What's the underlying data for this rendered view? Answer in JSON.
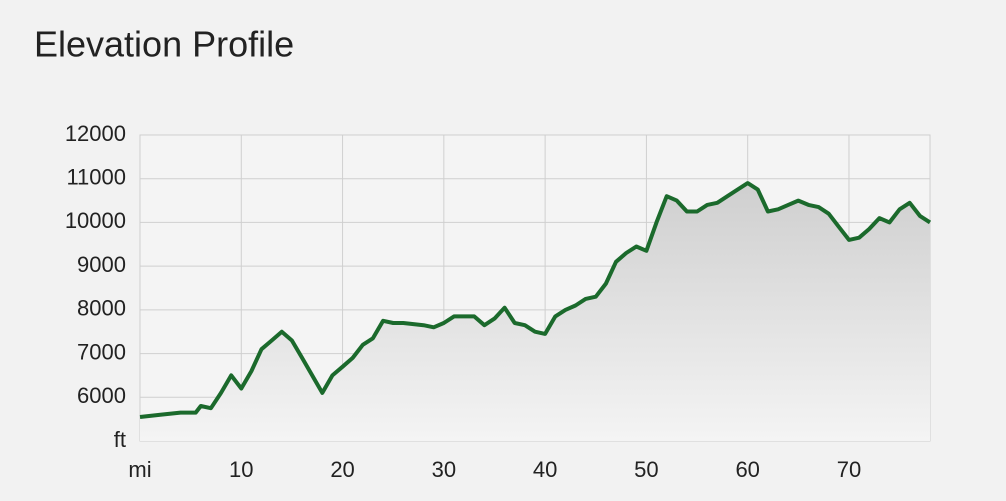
{
  "chart_data": {
    "type": "line",
    "title": "Elevation Profile",
    "x": [
      0,
      2,
      4,
      5.5,
      6,
      7,
      8,
      9,
      10,
      11,
      12,
      13,
      14,
      15,
      16,
      17,
      18,
      19,
      20,
      21,
      22,
      23,
      24,
      25,
      26,
      28,
      29,
      30,
      31,
      33,
      34,
      35,
      36,
      37,
      38,
      39,
      40,
      41,
      42,
      43,
      44,
      45,
      46,
      47,
      48,
      49,
      50,
      51,
      52,
      53,
      54,
      55,
      56,
      57,
      58,
      59,
      60,
      61,
      62,
      63,
      64,
      65,
      66,
      67,
      68,
      69,
      70,
      71,
      72,
      73,
      74,
      75,
      76,
      77,
      78
    ],
    "series": [
      {
        "name": "Elevation",
        "color": "#1b6a2c",
        "values": [
          5550,
          5600,
          5650,
          5650,
          5800,
          5750,
          6100,
          6500,
          6200,
          6600,
          7100,
          7300,
          7500,
          7300,
          6900,
          6500,
          6100,
          6500,
          6700,
          6900,
          7200,
          7350,
          7750,
          7700,
          7700,
          7650,
          7600,
          7700,
          7850,
          7850,
          7650,
          7800,
          8050,
          7700,
          7650,
          7500,
          7450,
          7850,
          8000,
          8100,
          8250,
          8300,
          8600,
          9100,
          9300,
          9450,
          9350,
          10000,
          10600,
          10500,
          10250,
          10250,
          10400,
          10450,
          10600,
          10750,
          10900,
          10750,
          10250,
          10300,
          10400,
          10500,
          10400,
          10350,
          10200,
          9900,
          9600,
          9650,
          9850,
          10100,
          10000,
          10300,
          10450,
          10150,
          10000
        ]
      }
    ],
    "xlim": [
      0,
      78
    ],
    "ylim": [
      5000,
      12000
    ],
    "xticks": [
      {
        "value": 0,
        "label": "mi"
      },
      10,
      20,
      30,
      40,
      50,
      60,
      70
    ],
    "yticks": [
      {
        "value": 5000,
        "label": "ft"
      },
      6000,
      7000,
      8000,
      9000,
      10000,
      11000,
      12000
    ],
    "grid": true,
    "fill_area": true
  }
}
